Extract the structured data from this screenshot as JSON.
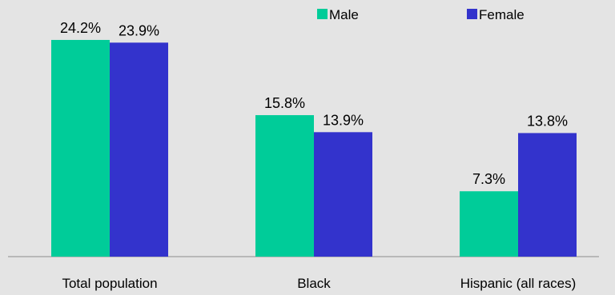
{
  "chart_data": {
    "type": "bar",
    "categories": [
      "Total population",
      "Black",
      "Hispanic (all races)"
    ],
    "series": [
      {
        "name": "Male",
        "values": [
          24.2,
          15.8,
          7.3
        ],
        "color": "#00cc99"
      },
      {
        "name": "Female",
        "values": [
          23.9,
          13.9,
          13.8
        ],
        "color": "#3333cc"
      }
    ],
    "value_format": "percent",
    "ylim": [
      0,
      26
    ],
    "grid": false,
    "legend_position": "top-right",
    "title": "",
    "xlabel": "",
    "ylabel": ""
  }
}
